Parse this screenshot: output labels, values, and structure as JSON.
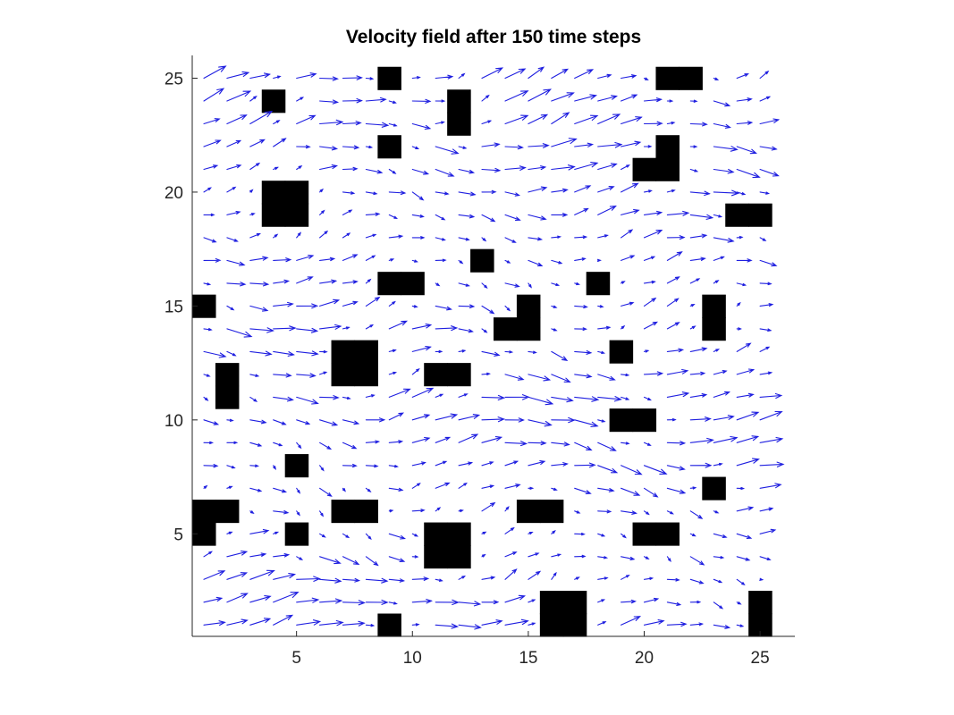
{
  "chart_data": {
    "type": "quiver",
    "title": "Velocity field after 150 time steps",
    "xlabel": "",
    "ylabel": "",
    "xlim": [
      0.5,
      26.5
    ],
    "ylim": [
      0.5,
      26.0
    ],
    "xticks": [
      5,
      10,
      15,
      20,
      25
    ],
    "yticks": [
      5,
      10,
      15,
      20,
      25
    ],
    "grid": false,
    "arrow_color": "#1f1fe0",
    "obstacle_color": "#000000",
    "grid_size": [
      26,
      26
    ],
    "obstacles": [
      [
        9,
        25
      ],
      [
        21,
        25
      ],
      [
        22,
        25
      ],
      [
        4,
        24
      ],
      [
        12,
        24
      ],
      [
        12,
        23
      ],
      [
        9,
        22
      ],
      [
        21,
        22
      ],
      [
        20,
        21
      ],
      [
        21,
        21
      ],
      [
        4,
        20
      ],
      [
        5,
        20
      ],
      [
        4,
        19
      ],
      [
        5,
        19
      ],
      [
        24,
        19
      ],
      [
        25,
        19
      ],
      [
        13,
        17
      ],
      [
        9,
        16
      ],
      [
        10,
        16
      ],
      [
        18,
        16
      ],
      [
        1,
        15
      ],
      [
        15,
        15
      ],
      [
        23,
        15
      ],
      [
        14,
        14
      ],
      [
        15,
        14
      ],
      [
        23,
        14
      ],
      [
        7,
        13
      ],
      [
        8,
        13
      ],
      [
        19,
        13
      ],
      [
        2,
        12
      ],
      [
        7,
        12
      ],
      [
        8,
        12
      ],
      [
        11,
        12
      ],
      [
        12,
        12
      ],
      [
        2,
        11
      ],
      [
        19,
        10
      ],
      [
        20,
        10
      ],
      [
        5,
        8
      ],
      [
        23,
        7
      ],
      [
        1,
        6
      ],
      [
        2,
        6
      ],
      [
        7,
        6
      ],
      [
        8,
        6
      ],
      [
        15,
        6
      ],
      [
        16,
        6
      ],
      [
        1,
        5
      ],
      [
        5,
        5
      ],
      [
        11,
        5
      ],
      [
        12,
        5
      ],
      [
        20,
        5
      ],
      [
        21,
        5
      ],
      [
        11,
        4
      ],
      [
        12,
        4
      ],
      [
        16,
        2
      ],
      [
        17,
        2
      ],
      [
        25,
        2
      ],
      [
        9,
        1
      ],
      [
        16,
        1
      ],
      [
        17,
        1
      ],
      [
        25,
        1
      ]
    ]
  }
}
